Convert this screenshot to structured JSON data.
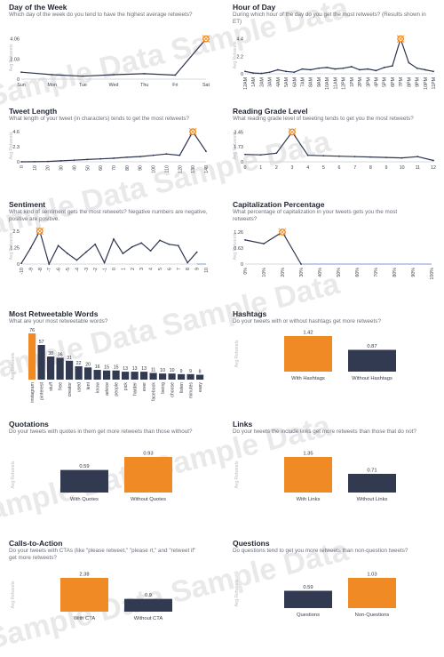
{
  "watermark": "Sample Data Sample Data",
  "colors": {
    "orange": "#f08a24",
    "navy": "#323a52",
    "line": "#2d3550",
    "axis": "#c9cdd6"
  },
  "panels": {
    "dow": {
      "title": "Day of the Week",
      "subtitle": "Which day of the week do you tend to have the highest average retweets?",
      "ylabel": "Avg Retweets"
    },
    "hour": {
      "title": "Hour of Day",
      "subtitle": "During which hour of the day do you get the most retweets? (Results shown in ET)",
      "ylabel": "Avg Retweets"
    },
    "len": {
      "title": "Tweet Length",
      "subtitle": "What length of your tweet (in characters) tends to get the most retweets?",
      "ylabel": "Avg Retweets"
    },
    "grade": {
      "title": "Reading Grade Level",
      "subtitle": "What reading grade level of tweeting tends to get you the most retweets?",
      "ylabel": "Avg Retweets"
    },
    "sent": {
      "title": "Sentiment",
      "subtitle": "What kind of sentiment gets the most retweets? Negative numbers are negative, positive are positive.",
      "ylabel": "Avg Retweets"
    },
    "caps": {
      "title": "Capitalization Percentage",
      "subtitle": "What percentage of capitalization in your tweets gets you the most retweets?",
      "ylabel": "Avg Retweets"
    },
    "words": {
      "title": "Most Retweetable Words",
      "subtitle": "What are your most retweetable words?",
      "ylabel": "Avg Retweets"
    },
    "hash": {
      "title": "Hashtags",
      "subtitle": "Do your tweets with or without hashtags get more retweets?",
      "ylabel": "Avg Retweets"
    },
    "quote": {
      "title": "Quotations",
      "subtitle": "Do your tweets with quotes in them get more retweets than those without?",
      "ylabel": "Avg Retweets"
    },
    "links": {
      "title": "Links",
      "subtitle": "Do your tweets the include links get more retweets than those that do not?",
      "ylabel": "Avg Retweets"
    },
    "cta": {
      "title": "Calls-to-Action",
      "subtitle": "Do your tweets with CTAs (like \"please retweet,\" \"please rt,\" and \"retweet if\" get more retweets?",
      "ylabel": "Avg Retweets"
    },
    "q": {
      "title": "Questions",
      "subtitle": "Do questions tend to get you more retweets than non-question tweets?",
      "ylabel": "Avg Retweets"
    }
  },
  "chart_data": [
    {
      "id": "dow",
      "type": "line",
      "x": [
        "Sun",
        "Mon",
        "Tue",
        "Wed",
        "Thu",
        "Fri",
        "Sat"
      ],
      "values": [
        0.7,
        0.45,
        0.3,
        0.45,
        0.55,
        0.4,
        4.06
      ],
      "yticks": [
        0,
        2.03,
        4.06
      ],
      "ylim": [
        0,
        4.3
      ],
      "peak_index": 6,
      "ylabel": "Avg Retweets"
    },
    {
      "id": "hour",
      "type": "line",
      "x": [
        "12AM",
        "1AM",
        "2AM",
        "3AM",
        "4AM",
        "5AM",
        "6AM",
        "7AM",
        "8AM",
        "9AM",
        "10AM",
        "11AM",
        "12PM",
        "1PM",
        "2PM",
        "3PM",
        "4PM",
        "5PM",
        "6PM",
        "7PM",
        "8PM",
        "9PM",
        "10PM",
        "11PM"
      ],
      "values": [
        0.3,
        0.1,
        0.05,
        0.2,
        0.5,
        0.3,
        0.2,
        0.6,
        0.5,
        0.7,
        0.8,
        0.6,
        0.7,
        0.9,
        0.5,
        0.6,
        0.4,
        0.8,
        1.0,
        4.4,
        1.4,
        0.7,
        0.5,
        0.3
      ],
      "yticks": [
        0,
        2.2,
        4.4
      ],
      "ylim": [
        0,
        4.7
      ],
      "peak_index": 19,
      "ylabel": "Avg Retweets"
    },
    {
      "id": "len",
      "type": "line",
      "x": [
        0,
        10,
        20,
        30,
        40,
        50,
        60,
        70,
        80,
        90,
        100,
        110,
        120,
        130,
        140
      ],
      "values": [
        0.0,
        0.02,
        0.05,
        0.15,
        0.25,
        0.35,
        0.45,
        0.55,
        0.7,
        0.8,
        1.0,
        1.2,
        1.0,
        4.6,
        1.6
      ],
      "yticks": [
        0,
        2.3,
        4.6
      ],
      "ylim": [
        0,
        4.9
      ],
      "peak_index": 13,
      "ylabel": "Avg Retweets"
    },
    {
      "id": "grade",
      "type": "line",
      "x": [
        0,
        1,
        2,
        3,
        4,
        5,
        6,
        7,
        8,
        9,
        10,
        11,
        12
      ],
      "values": [
        0.85,
        0.8,
        1.0,
        3.45,
        0.75,
        0.7,
        0.65,
        0.6,
        0.55,
        0.5,
        0.45,
        0.6,
        0.15
      ],
      "yticks": [
        0,
        1.73,
        3.45
      ],
      "ylim": [
        0,
        3.7
      ],
      "peak_index": 3,
      "ylabel": "Avg Retweets"
    },
    {
      "id": "sent",
      "type": "line",
      "x": [
        -10,
        -9,
        -8,
        -7,
        -6,
        -5,
        -4,
        -3,
        -2,
        -1,
        0,
        1,
        2,
        3,
        4,
        5,
        6,
        7,
        8,
        9,
        10
      ],
      "values": [
        0.05,
        1.2,
        2.5,
        0.0,
        1.4,
        0.8,
        0.3,
        0.9,
        1.5,
        0.1,
        1.9,
        0.8,
        1.3,
        1.6,
        1.0,
        1.8,
        1.5,
        1.4,
        0.1,
        0.9,
        null
      ],
      "yticks": [
        0,
        1.25,
        2.5
      ],
      "ylim": [
        0,
        2.7
      ],
      "peak_index": 2,
      "ylabel": "Avg Retweets"
    },
    {
      "id": "caps",
      "type": "line",
      "x": [
        "0%",
        "10%",
        "20%",
        "30%",
        "40%",
        "50%",
        "60%",
        "70%",
        "80%",
        "90%",
        "100%"
      ],
      "values": [
        0.95,
        0.8,
        1.26,
        0.0,
        null,
        null,
        null,
        null,
        null,
        null,
        null
      ],
      "yticks": [
        0,
        0.63,
        1.26
      ],
      "ylim": [
        0,
        1.4
      ],
      "peak_index": 2,
      "ylabel": "Avg Retweets"
    },
    {
      "id": "words",
      "type": "bar",
      "categories": [
        "instagram",
        "pinterest",
        "stuff",
        "free",
        "creator",
        "used",
        "lent",
        "know",
        "advice",
        "people",
        "pick",
        "harder",
        "ever",
        "facebook",
        "being",
        "choose",
        "listen",
        "minutes",
        "easy"
      ],
      "values": [
        76,
        57,
        38,
        36,
        31,
        22,
        20,
        16,
        15,
        15,
        13,
        13,
        13,
        11,
        10,
        10,
        9,
        9,
        8
      ],
      "ylabel": "Avg Retweets"
    },
    {
      "id": "hash",
      "type": "bar",
      "categories": [
        "With Hashtags",
        "Without Hashtags"
      ],
      "values": [
        1.42,
        0.87
      ],
      "ylabel": "Avg Retweets"
    },
    {
      "id": "quote",
      "type": "bar",
      "categories": [
        "With Quotes",
        "Without Quotes"
      ],
      "values": [
        0.59,
        0.93
      ],
      "ylabel": "Avg Retweets"
    },
    {
      "id": "links",
      "type": "bar",
      "categories": [
        "With Links",
        "Without Links"
      ],
      "values": [
        1.35,
        0.71
      ],
      "ylabel": "Avg Retweets"
    },
    {
      "id": "cta",
      "type": "bar",
      "categories": [
        "With CTA",
        "Without CTA"
      ],
      "values": [
        2.38,
        0.9
      ],
      "ylabel": "Avg Retweets"
    },
    {
      "id": "q",
      "type": "bar",
      "categories": [
        "Questions",
        "Non-Questions"
      ],
      "values": [
        0.59,
        1.03
      ],
      "ylabel": "Avg Retweets"
    }
  ]
}
